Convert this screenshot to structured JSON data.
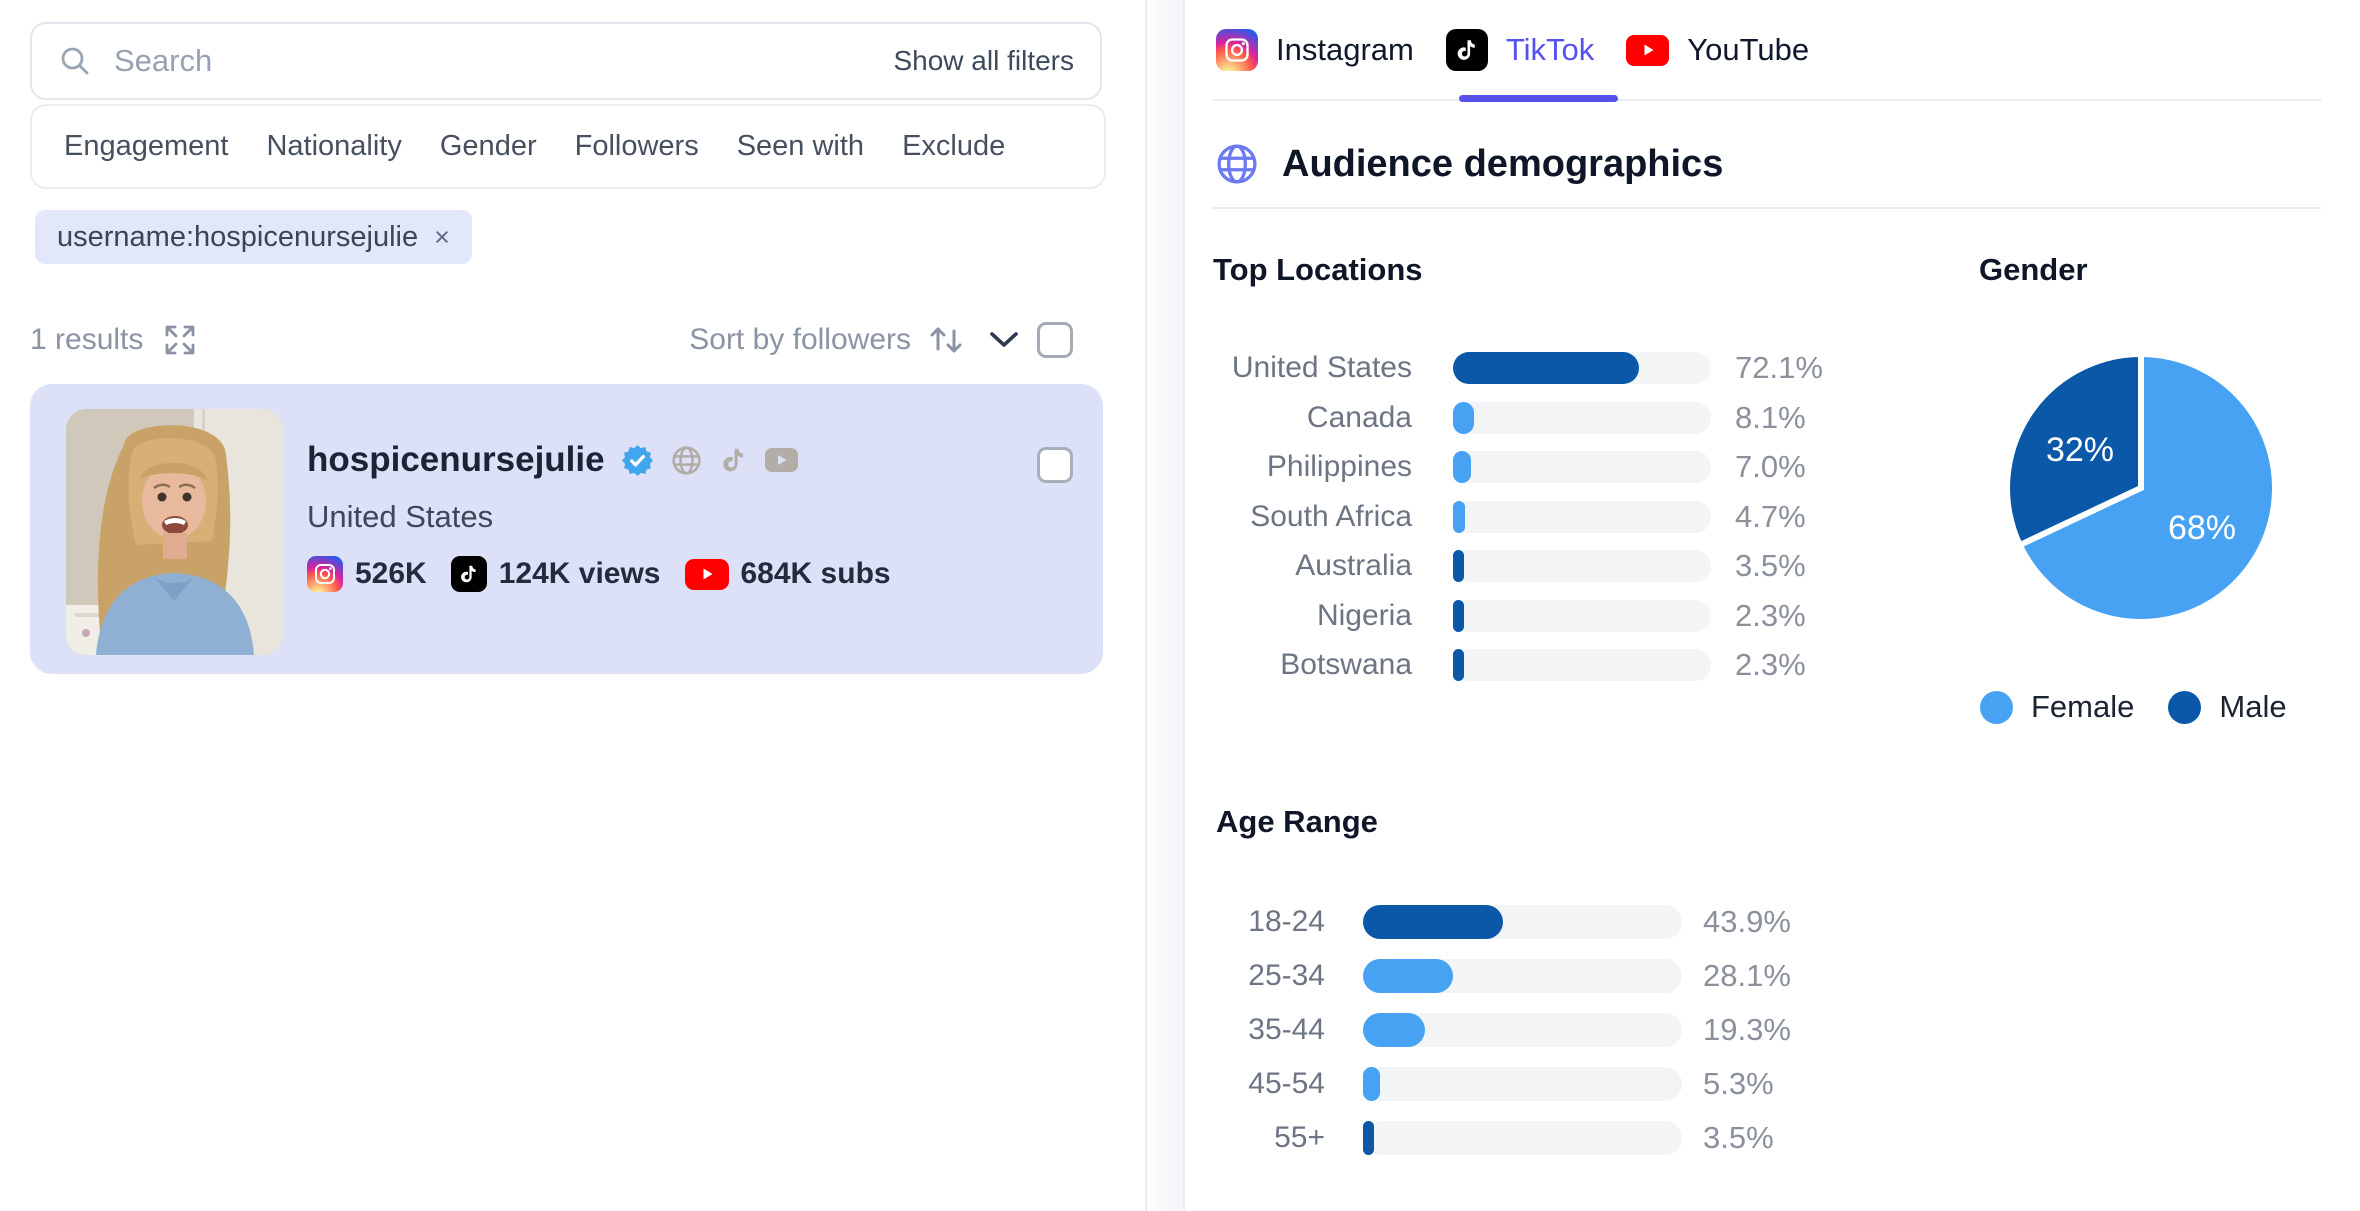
{
  "search": {
    "placeholder": "Search",
    "show_all_filters": "Show all filters"
  },
  "filters": [
    "Engagement",
    "Nationality",
    "Gender",
    "Followers",
    "Seen with",
    "Exclude"
  ],
  "chip": {
    "text": "username:hospicenursejulie",
    "remove": "×"
  },
  "results": {
    "count_label": "1 results",
    "sort_label": "Sort by followers"
  },
  "profile": {
    "username": "hospicenursejulie",
    "location": "United States",
    "instagram_followers": "526K",
    "tiktok_views": "124K views",
    "youtube_subs": "684K subs"
  },
  "tabs": [
    {
      "label": "Instagram",
      "active": false
    },
    {
      "label": "TikTok",
      "active": true
    },
    {
      "label": "YouTube",
      "active": false
    }
  ],
  "section": {
    "title": "Audience demographics"
  },
  "colors": {
    "accent_active_tab": "#5551ee",
    "bar_dark_blue": "#0a58a7",
    "bar_light_blue": "#47a2f3",
    "track_gray": "#f3f4f6",
    "card_lavender": "#dce1f8",
    "chip_lavender": "#e3e7fb",
    "verified_blue": "#41a6ee",
    "youtube_red": "#ff0000",
    "header_globe_indigo": "#6b7af2"
  },
  "chart_data": [
    {
      "type": "bar",
      "orientation": "horizontal",
      "title": "Top Locations",
      "categories": [
        "United States",
        "Canada",
        "Philippines",
        "South Africa",
        "Australia",
        "Nigeria",
        "Botswana"
      ],
      "values": [
        72.1,
        8.1,
        7.0,
        4.7,
        3.5,
        2.3,
        2.3
      ],
      "value_labels": [
        "72.1%",
        "8.1%",
        "7.0%",
        "4.7%",
        "3.5%",
        "2.3%",
        "2.3%"
      ],
      "bar_colors": [
        "dark",
        "light",
        "light",
        "light",
        "dark",
        "dark",
        "dark"
      ],
      "xlim": [
        0,
        100
      ],
      "grid": false,
      "legend_position": "none"
    },
    {
      "type": "pie",
      "title": "Gender",
      "slices": [
        {
          "label": "Female",
          "value": 68,
          "display": "68%",
          "color": "#47a2f3"
        },
        {
          "label": "Male",
          "value": 32,
          "display": "32%",
          "color": "#0a58a7"
        }
      ],
      "start_angle_deg": 0,
      "legend_position": "bottom"
    },
    {
      "type": "bar",
      "orientation": "horizontal",
      "title": "Age Range",
      "categories": [
        "18-24",
        "25-34",
        "35-44",
        "45-54",
        "55+"
      ],
      "values": [
        43.9,
        28.1,
        19.3,
        5.3,
        3.5
      ],
      "value_labels": [
        "43.9%",
        "28.1%",
        "19.3%",
        "5.3%",
        "3.5%"
      ],
      "bar_colors": [
        "dark",
        "light",
        "light",
        "light",
        "dark"
      ],
      "xlim": [
        0,
        100
      ],
      "grid": false,
      "legend_position": "none"
    }
  ]
}
